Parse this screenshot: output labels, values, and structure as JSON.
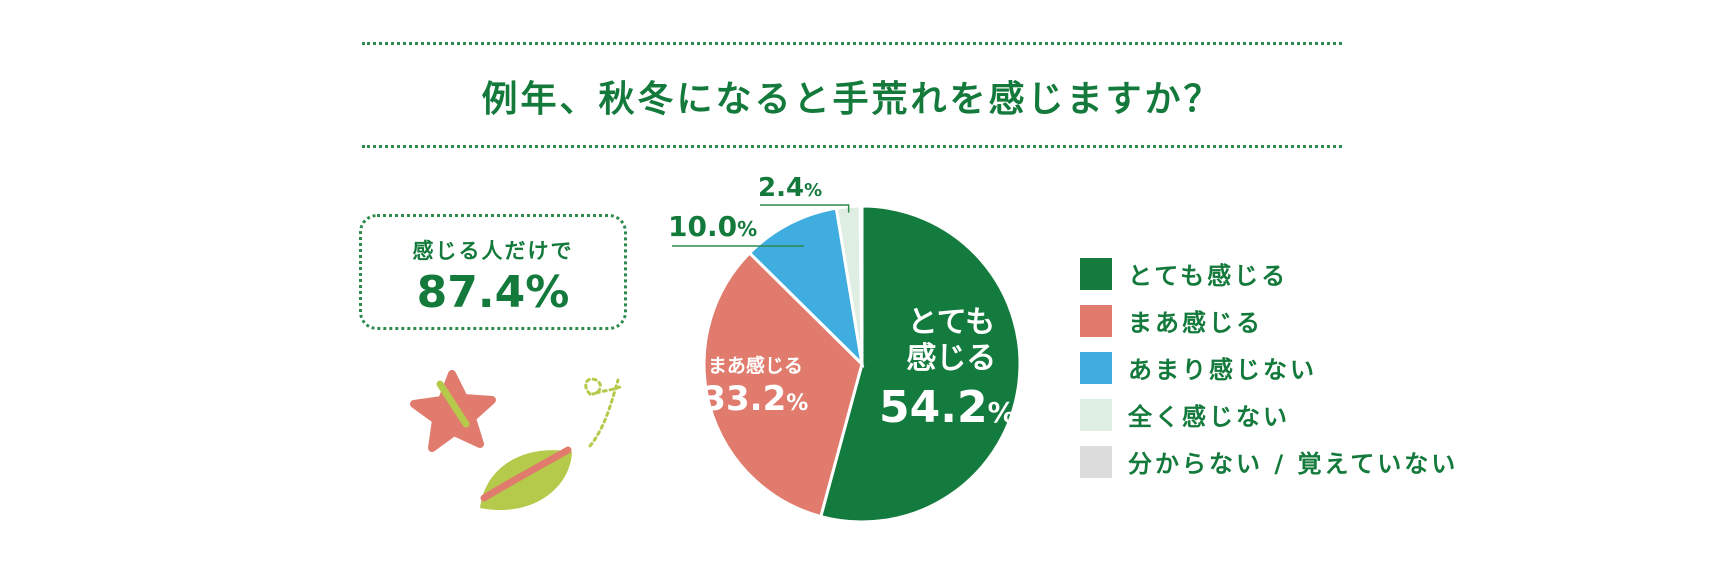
{
  "header": {
    "title": "例年、秋冬になると手荒れを感じますか？"
  },
  "summary": {
    "label": "感じる人だけで",
    "value": "87.4%"
  },
  "chart_data": {
    "type": "pie",
    "title": "例年、秋冬になると手荒れを感じますか？",
    "unit": "%",
    "slices": [
      {
        "name": "とても感じる",
        "value": 54.2,
        "value_label": "54.2",
        "inner_label_lines": [
          "とても",
          "感じる"
        ],
        "color": "#137b3d"
      },
      {
        "name": "まあ感じる",
        "value": 33.2,
        "value_label": "33.2",
        "inner_label_lines": [
          "まあ感じる"
        ],
        "color": "#e07b6d"
      },
      {
        "name": "あまり感じない",
        "value": 10.0,
        "value_label": "10.0",
        "color": "#40ade1"
      },
      {
        "name": "全く感じない",
        "value": 2.4,
        "value_label": "2.4",
        "color": "#dfeee2"
      },
      {
        "name": "分からない / 覚えていない",
        "value": 0.2,
        "color": "#dcdcdc"
      }
    ],
    "legend_position": "right"
  },
  "legend": {
    "items": [
      {
        "label": "とても感じる",
        "color": "#137b3d"
      },
      {
        "label": "まあ感じる",
        "color": "#e07b6d"
      },
      {
        "label": "あまり感じない",
        "color": "#40ade1"
      },
      {
        "label": "全く感じない",
        "color": "#dfeee2"
      },
      {
        "label": "分からない / 覚えていない",
        "color": "#dcdcdc"
      }
    ]
  },
  "decoration": {
    "icons": [
      "maple-leaf-icon",
      "green-leaf-icon",
      "wind-swirl-icon"
    ]
  }
}
